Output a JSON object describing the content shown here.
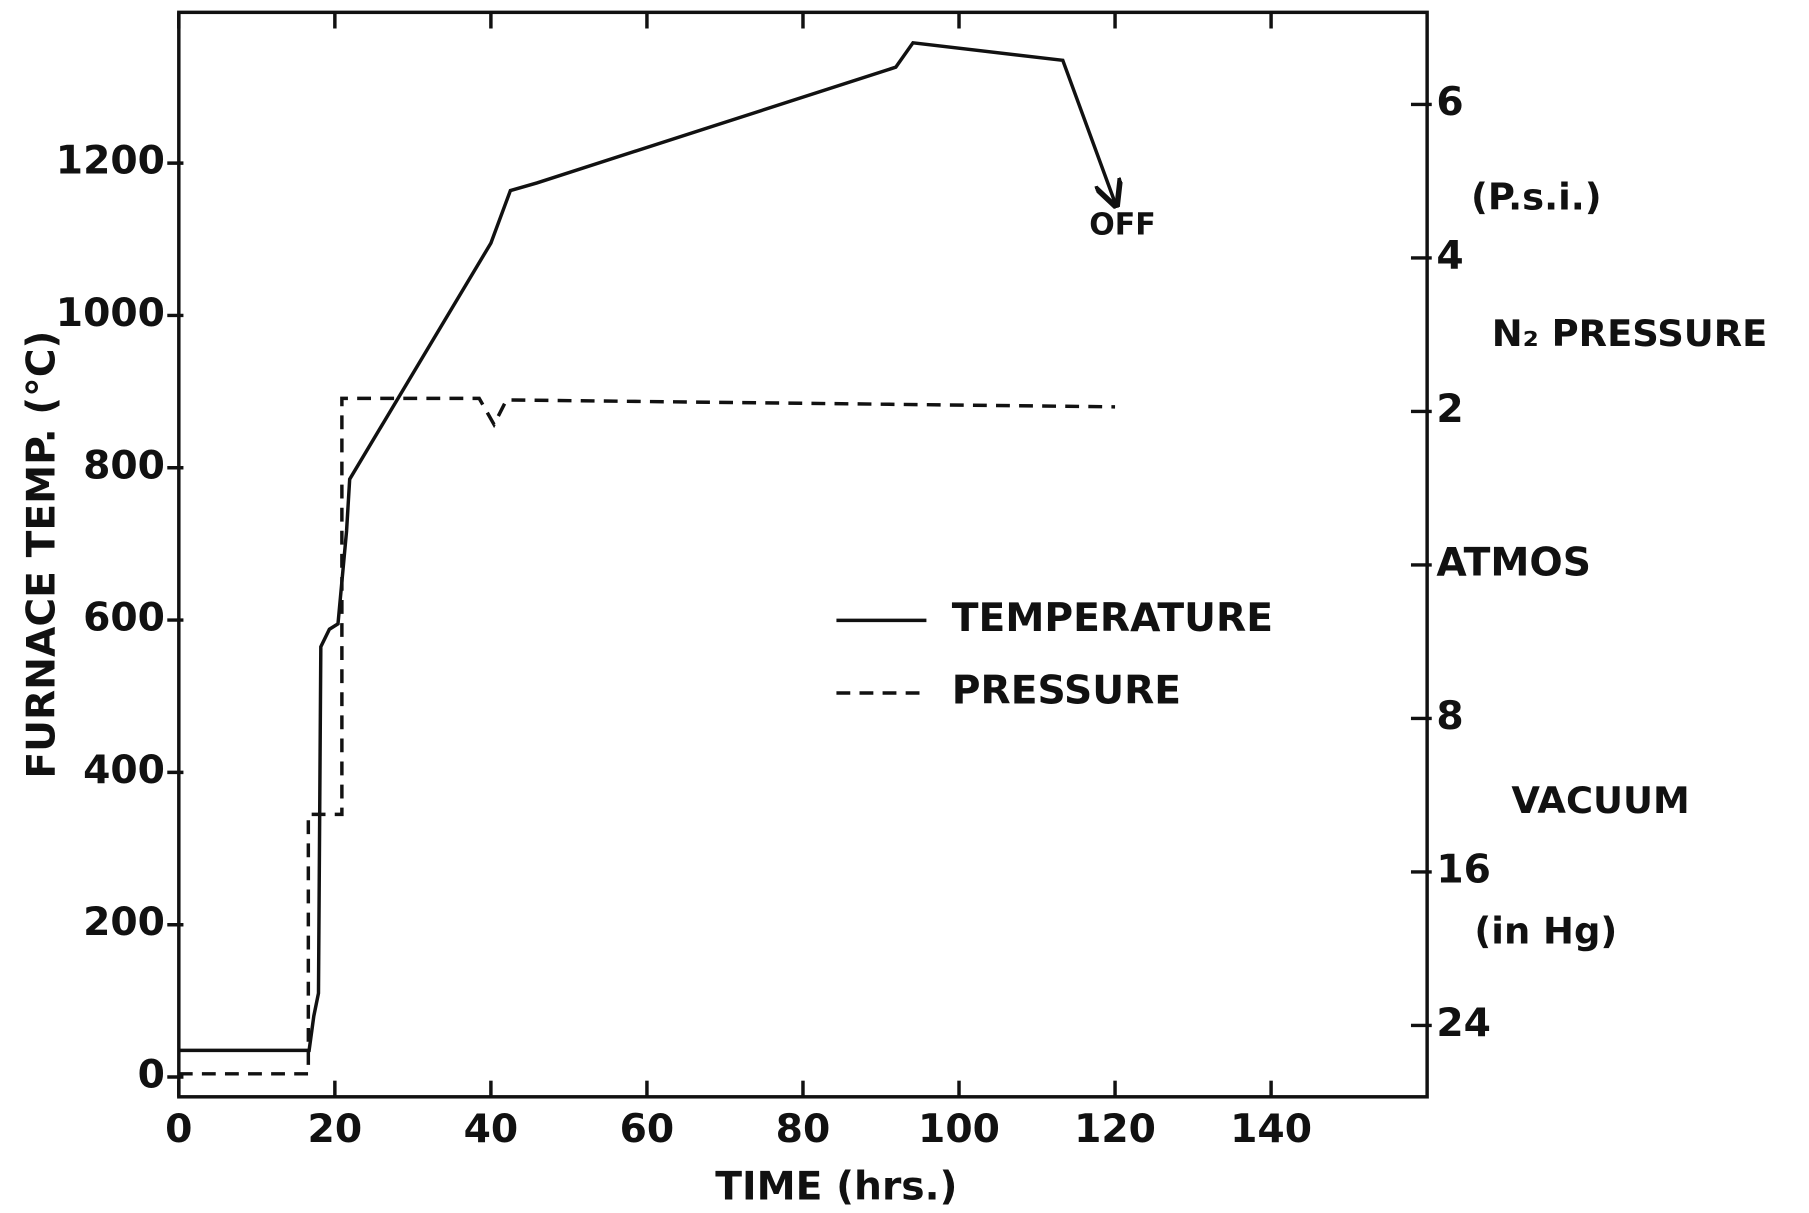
{
  "chart_data": {
    "type": "line",
    "x_label": "TIME (hrs.)",
    "y_label": "FURNACE TEMP. (°C)",
    "xlim": [
      0,
      160
    ],
    "xticks": [
      0,
      20,
      40,
      60,
      80,
      100,
      120,
      140
    ],
    "ylim": [
      -26,
      1398
    ],
    "yticks": [
      0,
      200,
      400,
      600,
      800,
      1000,
      1200
    ],
    "y2lim": [
      -6.93,
      7.2
    ],
    "y2ticks": [
      6,
      4,
      2,
      {
        "value": 0,
        "label": "ATMOS"
      },
      {
        "value": -2,
        "label": "8"
      },
      {
        "value": -4,
        "label": "16"
      },
      {
        "value": -6,
        "label": "24"
      }
    ],
    "series": [
      {
        "name": "TEMPERATURE",
        "color": "#111111",
        "style": "solid",
        "axis": "y",
        "x": [
          0,
          16.7,
          17.3,
          17.9,
          18.2,
          19.3,
          20.4,
          21.5,
          21.9,
          40,
          42.5,
          45.9,
          91.9,
          94.1,
          113.3,
          120
        ],
        "values": [
          35,
          35,
          80,
          110,
          565,
          588,
          595,
          717,
          785,
          1095,
          1164,
          1174,
          1326,
          1358,
          1335,
          1148
        ]
      },
      {
        "name": "PRESSURE",
        "color": "#111111",
        "style": "dashed",
        "axis": "y2",
        "x": [
          0,
          16.6,
          16.6,
          20.9,
          20.9,
          38.5,
          40.4,
          42,
          120
        ],
        "values": [
          -6.63,
          -6.63,
          -3.25,
          -3.25,
          2.17,
          2.17,
          1.83,
          2.15,
          2.06
        ]
      }
    ],
    "annotations": [
      "OFF",
      "(P.s.i.)",
      "N₂ PRESSURE",
      "VACUUM",
      "(in Hg)"
    ]
  }
}
